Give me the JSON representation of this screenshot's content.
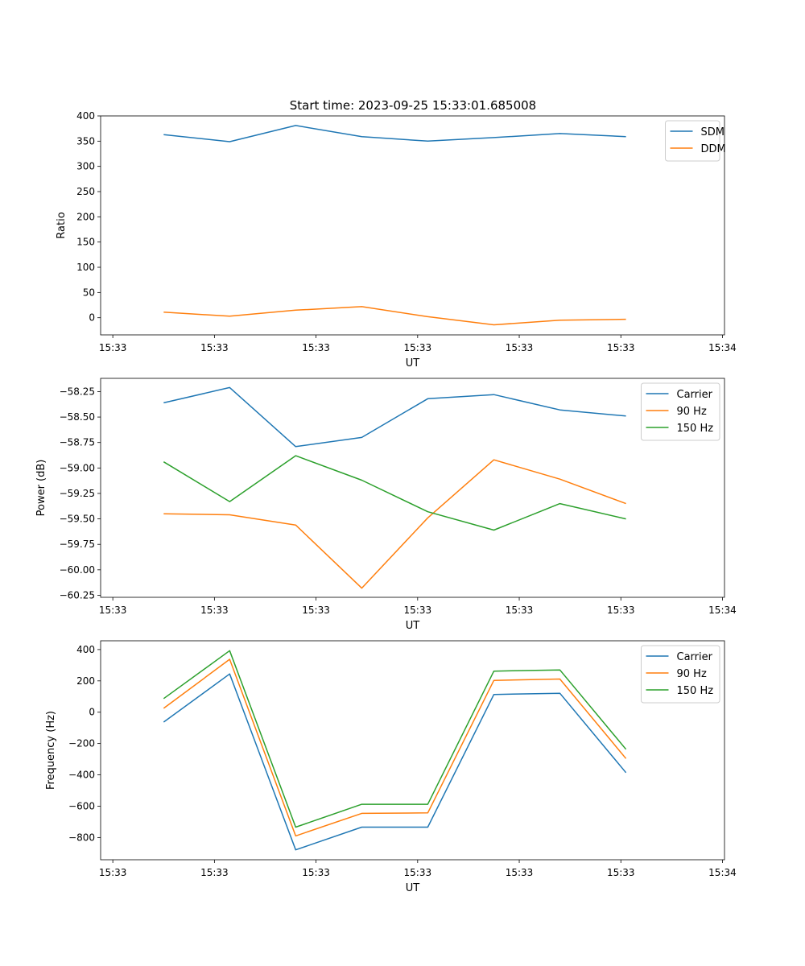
{
  "title": "Start time: 2023-09-25 15:33:01.685008",
  "chart_data": [
    {
      "type": "line",
      "xlabel": "UT",
      "ylabel": "Ratio",
      "x_ticks": [
        {
          "t": 0,
          "label": "15:33"
        },
        {
          "t": 1,
          "label": "15:33"
        },
        {
          "t": 2,
          "label": "15:33"
        },
        {
          "t": 3,
          "label": "15:33"
        },
        {
          "t": 4,
          "label": "15:33"
        },
        {
          "t": 5,
          "label": "15:33"
        },
        {
          "t": 6,
          "label": "15:34"
        }
      ],
      "xlim": [
        -0.12,
        6.02
      ],
      "x": [
        0.5,
        1.15,
        1.8,
        2.45,
        3.1,
        3.75,
        4.4,
        5.05
      ],
      "ylim": [
        -34,
        400
      ],
      "y_ticks": [
        0,
        50,
        100,
        150,
        200,
        250,
        300,
        350,
        400
      ],
      "y_tick_labels": [
        "0",
        "50",
        "100",
        "150",
        "200",
        "250",
        "300",
        "350",
        "400"
      ],
      "legend": "top-right",
      "series": [
        {
          "name": "SDM",
          "color": "#1f77b4",
          "values": [
            363,
            349,
            381,
            359,
            350,
            357,
            365,
            359
          ]
        },
        {
          "name": "DDM",
          "color": "#ff7f0e",
          "values": [
            11,
            3,
            15,
            22,
            2,
            -14,
            -5,
            -3
          ]
        }
      ]
    },
    {
      "type": "line",
      "xlabel": "UT",
      "ylabel": "Power (dB)",
      "x_ticks": [
        {
          "t": 0,
          "label": "15:33"
        },
        {
          "t": 1,
          "label": "15:33"
        },
        {
          "t": 2,
          "label": "15:33"
        },
        {
          "t": 3,
          "label": "15:33"
        },
        {
          "t": 4,
          "label": "15:33"
        },
        {
          "t": 5,
          "label": "15:33"
        },
        {
          "t": 6,
          "label": "15:34"
        }
      ],
      "xlim": [
        -0.12,
        6.02
      ],
      "x": [
        0.5,
        1.15,
        1.8,
        2.45,
        3.1,
        3.75,
        4.4,
        5.05
      ],
      "ylim": [
        -60.27,
        -58.12
      ],
      "y_ticks": [
        -60.25,
        -60.0,
        -59.75,
        -59.5,
        -59.25,
        -59.0,
        -58.75,
        -58.5,
        -58.25
      ],
      "y_tick_labels": [
        "−60.25",
        "−60.00",
        "−59.75",
        "−59.50",
        "−59.25",
        "−59.00",
        "−58.75",
        "−58.50",
        "−58.25"
      ],
      "legend": "top-right",
      "series": [
        {
          "name": "Carrier",
          "color": "#1f77b4",
          "values": [
            -58.36,
            -58.21,
            -58.79,
            -58.7,
            -58.32,
            -58.28,
            -58.43,
            -58.49
          ]
        },
        {
          "name": "90 Hz",
          "color": "#ff7f0e",
          "values": [
            -59.45,
            -59.46,
            -59.56,
            -60.18,
            -59.49,
            -58.92,
            -59.11,
            -59.35
          ]
        },
        {
          "name": "150 Hz",
          "color": "#2ca02c",
          "values": [
            -58.94,
            -59.33,
            -58.88,
            -59.12,
            -59.43,
            -59.61,
            -59.35,
            -59.5
          ]
        }
      ]
    },
    {
      "type": "line",
      "xlabel": "UT",
      "ylabel": "Frequency (Hz)",
      "x_ticks": [
        {
          "t": 0,
          "label": "15:33"
        },
        {
          "t": 1,
          "label": "15:33"
        },
        {
          "t": 2,
          "label": "15:33"
        },
        {
          "t": 3,
          "label": "15:33"
        },
        {
          "t": 4,
          "label": "15:33"
        },
        {
          "t": 5,
          "label": "15:33"
        },
        {
          "t": 6,
          "label": "15:34"
        }
      ],
      "xlim": [
        -0.12,
        6.02
      ],
      "x": [
        0.5,
        1.15,
        1.8,
        2.45,
        3.1,
        3.75,
        4.4,
        5.05
      ],
      "ylim": [
        -942,
        456
      ],
      "y_ticks": [
        -800,
        -600,
        -400,
        -200,
        0,
        200,
        400
      ],
      "y_tick_labels": [
        "−800",
        "−600",
        "−400",
        "−200",
        "0",
        "200",
        "400"
      ],
      "legend": "top-right",
      "series": [
        {
          "name": "Carrier",
          "color": "#1f77b4",
          "values": [
            -63,
            244,
            -879,
            -734,
            -734,
            113,
            121,
            -386
          ]
        },
        {
          "name": "90 Hz",
          "color": "#ff7f0e",
          "values": [
            25,
            338,
            -790,
            -646,
            -643,
            203,
            212,
            -296
          ]
        },
        {
          "name": "150 Hz",
          "color": "#2ca02c",
          "values": [
            87,
            393,
            -734,
            -588,
            -588,
            262,
            270,
            -237
          ]
        }
      ]
    }
  ]
}
